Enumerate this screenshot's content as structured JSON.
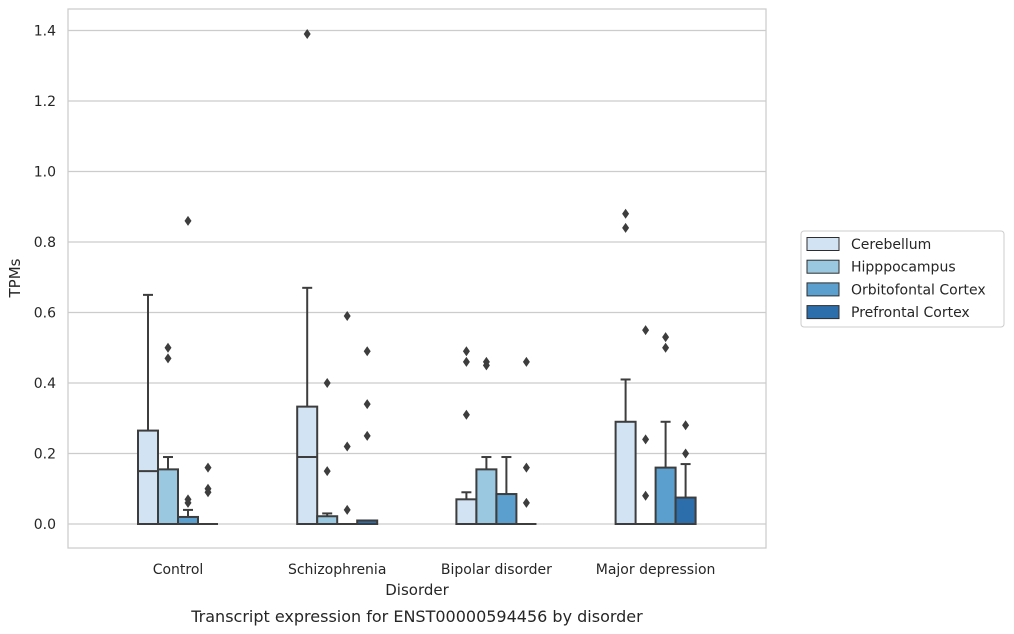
{
  "caption": "Transcript expression for ENST00000594456 by disorder",
  "chart_data": {
    "type": "box",
    "title": "",
    "xlabel": "Disorder",
    "ylabel": "TPMs",
    "ylim": [
      -0.065,
      1.46
    ],
    "yticks": [
      "0.0",
      "0.2",
      "0.4",
      "0.6",
      "0.8",
      "1.0",
      "1.2",
      "1.4"
    ],
    "grid": "horizontal",
    "legend_position": "right",
    "categories": [
      "Control",
      "Schizophrenia",
      "Bipolar disorder",
      "Major depression"
    ],
    "series": [
      {
        "name": "Cerebellum",
        "color": "#d2e3f3",
        "boxes": [
          {
            "q1": 0,
            "median": 0.15,
            "q3": 0.265,
            "whisker_low": 0,
            "whisker_high": 0.65,
            "outliers": []
          },
          {
            "q1": 0,
            "median": 0.19,
            "q3": 0.333,
            "whisker_low": 0,
            "whisker_high": 0.67,
            "outliers": [
              1.39
            ]
          },
          {
            "q1": 0,
            "median": 0,
            "q3": 0.07,
            "whisker_low": 0,
            "whisker_high": 0.09,
            "outliers": [
              0.31,
              0.46,
              0.49
            ]
          },
          {
            "q1": 0,
            "median": 0,
            "q3": 0.29,
            "whisker_low": 0,
            "whisker_high": 0.41,
            "outliers": [
              0.84,
              0.88
            ]
          }
        ]
      },
      {
        "name": "Hipppocampus",
        "color": "#9ac8e0",
        "boxes": [
          {
            "q1": 0,
            "median": 0,
            "q3": 0.155,
            "whisker_low": 0,
            "whisker_high": 0.19,
            "outliers": [
              0.47,
              0.5
            ]
          },
          {
            "q1": 0,
            "median": 0,
            "q3": 0.022,
            "whisker_low": 0,
            "whisker_high": 0.03,
            "outliers": [
              0.15,
              0.4
            ]
          },
          {
            "q1": 0,
            "median": 0,
            "q3": 0.155,
            "whisker_low": 0,
            "whisker_high": 0.19,
            "outliers": [
              0.45,
              0.46
            ]
          },
          {
            "q1": 0,
            "median": 0,
            "q3": 0,
            "whisker_low": 0,
            "whisker_high": 0,
            "outliers": [
              0.08,
              0.24,
              0.55
            ]
          }
        ]
      },
      {
        "name": "Orbitofontal Cortex",
        "color": "#5a9fcd",
        "boxes": [
          {
            "q1": 0,
            "median": 0,
            "q3": 0.02,
            "whisker_low": 0,
            "whisker_high": 0.04,
            "outliers": [
              0.06,
              0.07,
              0.86
            ]
          },
          {
            "q1": 0,
            "median": 0,
            "q3": 0,
            "whisker_low": 0,
            "whisker_high": 0,
            "outliers": [
              0.04,
              0.22,
              0.59
            ]
          },
          {
            "q1": 0,
            "median": 0,
            "q3": 0.085,
            "whisker_low": 0,
            "whisker_high": 0.19,
            "outliers": []
          },
          {
            "q1": 0,
            "median": 0,
            "q3": 0.16,
            "whisker_low": 0,
            "whisker_high": 0.29,
            "outliers": [
              0.5,
              0.53
            ]
          }
        ]
      },
      {
        "name": "Prefrontal Cortex",
        "color": "#2c6eab",
        "boxes": [
          {
            "q1": 0,
            "median": 0,
            "q3": 0,
            "whisker_low": 0,
            "whisker_high": 0,
            "outliers": [
              0.09,
              0.1,
              0.16
            ]
          },
          {
            "q1": 0,
            "median": 0,
            "q3": 0.01,
            "whisker_low": 0,
            "whisker_high": 0.01,
            "outliers": [
              0.25,
              0.34,
              0.49
            ]
          },
          {
            "q1": 0,
            "median": 0,
            "q3": 0,
            "whisker_low": 0,
            "whisker_high": 0,
            "outliers": [
              0.06,
              0.16,
              0.46
            ]
          },
          {
            "q1": 0,
            "median": 0,
            "q3": 0.075,
            "whisker_low": 0,
            "whisker_high": 0.17,
            "outliers": [
              0.2,
              0.28
            ]
          }
        ]
      }
    ]
  }
}
